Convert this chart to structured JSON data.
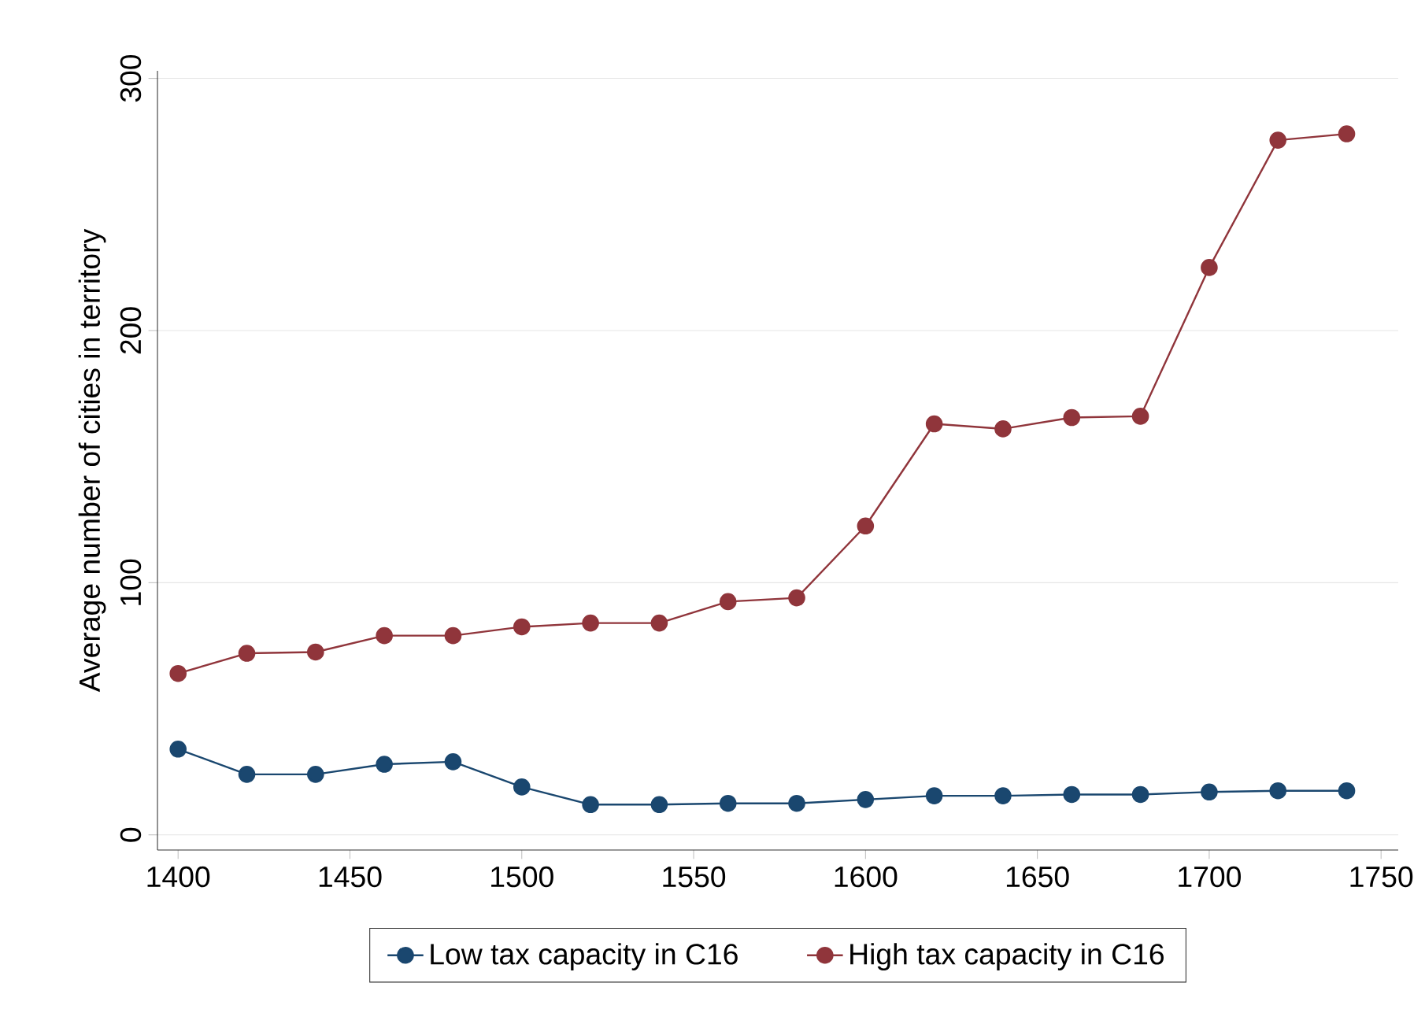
{
  "chart_data": {
    "type": "line",
    "ylabel": "Average number of cities in territory",
    "x": [
      1400,
      1420,
      1440,
      1460,
      1480,
      1500,
      1520,
      1540,
      1560,
      1580,
      1600,
      1620,
      1640,
      1660,
      1680,
      1700,
      1720,
      1740
    ],
    "series": [
      {
        "name": "Low tax capacity in C16",
        "color": "#1a476f",
        "values": [
          34,
          24,
          24,
          28,
          29,
          19,
          12,
          12,
          12.5,
          12.5,
          14,
          15.5,
          15.5,
          16,
          16,
          17,
          17.5,
          17.5
        ]
      },
      {
        "name": "High tax capacity in C16",
        "color": "#90353b",
        "values": [
          64,
          72,
          72.5,
          79,
          79,
          82.5,
          84,
          84,
          92.5,
          94,
          122.5,
          163,
          161,
          165.5,
          166,
          225,
          275.5,
          278
        ]
      }
    ],
    "xlim": [
      1394,
      1755
    ],
    "ylim": [
      -6,
      303
    ],
    "xticks": [
      1400,
      1450,
      1500,
      1550,
      1600,
      1650,
      1700,
      1750
    ],
    "yticks": [
      0,
      100,
      200,
      300
    ],
    "grid": "y",
    "legend": "bottom",
    "marker": "circle",
    "line_style": "solid"
  }
}
